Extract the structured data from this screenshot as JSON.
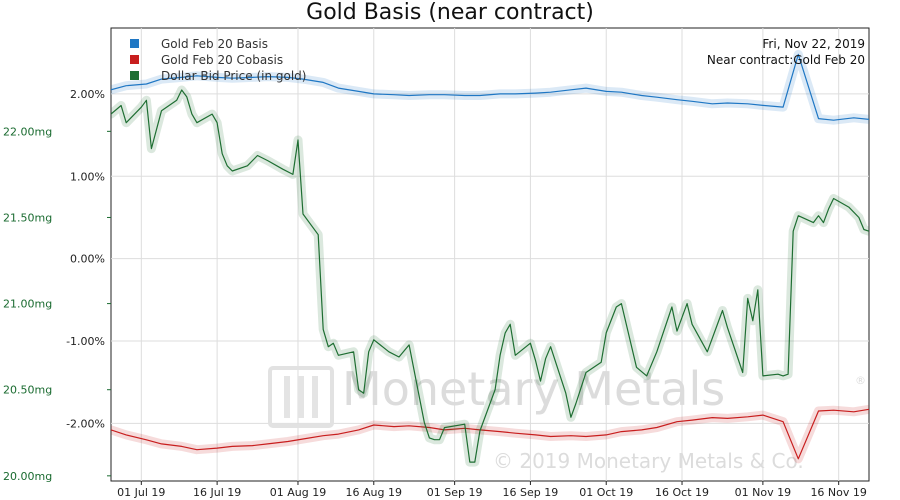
{
  "chart_data": {
    "type": "line",
    "title": "Gold Basis (near contract)",
    "info": [
      "Fri, Nov 22, 2019",
      "Near contract:Gold Feb 20"
    ],
    "watermark": {
      "brand": "Monetary Metals",
      "registered": "®",
      "copyright": "© 2019 Monetary Metals & Co."
    },
    "x_ticks": [
      "01 Jul 19",
      "16 Jul 19",
      "01 Aug 19",
      "16 Aug 19",
      "01 Sep 19",
      "16 Sep 19",
      "01 Oct 19",
      "16 Oct 19",
      "01 Nov 19",
      "16 Nov 19"
    ],
    "xlim": [
      "2019-06-25",
      "2019-11-22"
    ],
    "y_right": {
      "ticks": [
        "2.00%",
        "1.00%",
        "0.00%",
        "-1.00%",
        "-2.00%"
      ],
      "tick_values": [
        2,
        1,
        0,
        -1,
        -2
      ],
      "lim": [
        -2.7,
        2.8
      ]
    },
    "y_left": {
      "ticks": [
        "22.00mg",
        "21.50mg",
        "21.00mg",
        "20.50mg",
        "20.00mg"
      ],
      "tick_values": [
        22.0,
        21.5,
        21.0,
        20.5,
        20.0
      ],
      "lim": [
        19.97,
        22.6
      ]
    },
    "grid": true,
    "legend_position": "top-left",
    "series": [
      {
        "name": "Gold Feb 20 Basis",
        "axis": "right",
        "color": "#1f77c4",
        "x": [
          "2019-06-25",
          "2019-06-28",
          "2019-07-02",
          "2019-07-05",
          "2019-07-09",
          "2019-07-12",
          "2019-07-16",
          "2019-07-19",
          "2019-07-23",
          "2019-07-26",
          "2019-07-30",
          "2019-08-02",
          "2019-08-06",
          "2019-08-09",
          "2019-08-13",
          "2019-08-16",
          "2019-08-20",
          "2019-08-23",
          "2019-08-27",
          "2019-08-30",
          "2019-09-03",
          "2019-09-06",
          "2019-09-10",
          "2019-09-13",
          "2019-09-17",
          "2019-09-20",
          "2019-09-24",
          "2019-09-27",
          "2019-10-01",
          "2019-10-04",
          "2019-10-08",
          "2019-10-11",
          "2019-10-15",
          "2019-10-18",
          "2019-10-22",
          "2019-10-25",
          "2019-10-29",
          "2019-11-01",
          "2019-11-05",
          "2019-11-08",
          "2019-11-12",
          "2019-11-15",
          "2019-11-19",
          "2019-11-22"
        ],
        "values": [
          2.05,
          2.1,
          2.12,
          2.18,
          2.2,
          2.22,
          2.2,
          2.19,
          2.2,
          2.21,
          2.2,
          2.18,
          2.14,
          2.07,
          2.03,
          2.0,
          1.99,
          1.98,
          1.99,
          1.99,
          1.98,
          1.98,
          2.0,
          2.0,
          2.01,
          2.02,
          2.05,
          2.07,
          2.03,
          2.02,
          1.98,
          1.96,
          1.93,
          1.91,
          1.88,
          1.89,
          1.88,
          1.86,
          1.84,
          2.48,
          1.7,
          1.68,
          1.71,
          1.69
        ]
      },
      {
        "name": "Gold Feb 20 Cobasis",
        "axis": "right",
        "color": "#c81e1e",
        "x": [
          "2019-06-25",
          "2019-06-28",
          "2019-07-02",
          "2019-07-05",
          "2019-07-09",
          "2019-07-12",
          "2019-07-16",
          "2019-07-19",
          "2019-07-23",
          "2019-07-26",
          "2019-07-30",
          "2019-08-02",
          "2019-08-06",
          "2019-08-09",
          "2019-08-13",
          "2019-08-16",
          "2019-08-20",
          "2019-08-23",
          "2019-08-27",
          "2019-08-30",
          "2019-09-03",
          "2019-09-06",
          "2019-09-10",
          "2019-09-13",
          "2019-09-17",
          "2019-09-20",
          "2019-09-24",
          "2019-09-27",
          "2019-10-01",
          "2019-10-04",
          "2019-10-08",
          "2019-10-11",
          "2019-10-15",
          "2019-10-18",
          "2019-10-22",
          "2019-10-25",
          "2019-10-29",
          "2019-11-01",
          "2019-11-05",
          "2019-11-08",
          "2019-11-12",
          "2019-11-15",
          "2019-11-19",
          "2019-11-22"
        ],
        "values": [
          -2.08,
          -2.14,
          -2.2,
          -2.25,
          -2.28,
          -2.32,
          -2.3,
          -2.28,
          -2.27,
          -2.25,
          -2.22,
          -2.19,
          -2.15,
          -2.13,
          -2.08,
          -2.02,
          -2.04,
          -2.03,
          -2.05,
          -2.08,
          -2.06,
          -2.08,
          -2.1,
          -2.12,
          -2.14,
          -2.16,
          -2.15,
          -2.16,
          -2.14,
          -2.1,
          -2.08,
          -2.05,
          -1.98,
          -1.96,
          -1.93,
          -1.94,
          -1.92,
          -1.9,
          -1.98,
          -2.43,
          -1.85,
          -1.84,
          -1.86,
          -1.83
        ]
      },
      {
        "name": "Dollar Bid Price (in gold)",
        "axis": "left",
        "color": "#1e6e32",
        "x": [
          "2019-06-25",
          "2019-06-27",
          "2019-06-28",
          "2019-07-01",
          "2019-07-02",
          "2019-07-03",
          "2019-07-05",
          "2019-07-08",
          "2019-07-09",
          "2019-07-10",
          "2019-07-11",
          "2019-07-12",
          "2019-07-15",
          "2019-07-16",
          "2019-07-17",
          "2019-07-18",
          "2019-07-19",
          "2019-07-22",
          "2019-07-24",
          "2019-07-26",
          "2019-07-29",
          "2019-07-31",
          "2019-08-01",
          "2019-08-02",
          "2019-08-05",
          "2019-08-06",
          "2019-08-07",
          "2019-08-08",
          "2019-08-09",
          "2019-08-12",
          "2019-08-13",
          "2019-08-14",
          "2019-08-15",
          "2019-08-16",
          "2019-08-19",
          "2019-08-21",
          "2019-08-23",
          "2019-08-26",
          "2019-08-27",
          "2019-08-28",
          "2019-08-29",
          "2019-08-30",
          "2019-09-03",
          "2019-09-04",
          "2019-09-05",
          "2019-09-06",
          "2019-09-09",
          "2019-09-10",
          "2019-09-11",
          "2019-09-12",
          "2019-09-13",
          "2019-09-16",
          "2019-09-17",
          "2019-09-18",
          "2019-09-19",
          "2019-09-20",
          "2019-09-23",
          "2019-09-24",
          "2019-09-25",
          "2019-09-27",
          "2019-09-30",
          "2019-10-01",
          "2019-10-03",
          "2019-10-04",
          "2019-10-07",
          "2019-10-09",
          "2019-10-11",
          "2019-10-14",
          "2019-10-15",
          "2019-10-17",
          "2019-10-18",
          "2019-10-21",
          "2019-10-24",
          "2019-10-25",
          "2019-10-28",
          "2019-10-29",
          "2019-10-30",
          "2019-10-31",
          "2019-11-01",
          "2019-11-04",
          "2019-11-05",
          "2019-11-06",
          "2019-11-07",
          "2019-11-08",
          "2019-11-11",
          "2019-11-12",
          "2019-11-13",
          "2019-11-14",
          "2019-11-15",
          "2019-11-18",
          "2019-11-20",
          "2019-11-21",
          "2019-11-22"
        ],
        "values": [
          22.1,
          22.15,
          22.05,
          22.14,
          22.18,
          21.9,
          22.12,
          22.18,
          22.24,
          22.2,
          22.1,
          22.05,
          22.1,
          22.05,
          21.87,
          21.8,
          21.77,
          21.8,
          21.86,
          21.83,
          21.78,
          21.75,
          21.95,
          21.52,
          21.4,
          20.85,
          20.75,
          20.77,
          20.7,
          20.72,
          20.5,
          20.48,
          20.72,
          20.79,
          20.72,
          20.69,
          20.76,
          20.31,
          20.22,
          20.21,
          20.21,
          20.28,
          20.3,
          20.08,
          20.08,
          20.26,
          20.5,
          20.7,
          20.83,
          20.88,
          20.7,
          20.77,
          20.67,
          20.55,
          20.68,
          20.75,
          20.48,
          20.34,
          20.42,
          20.6,
          20.66,
          20.83,
          20.98,
          21.0,
          20.63,
          20.58,
          20.72,
          20.98,
          20.84,
          21.0,
          20.88,
          20.72,
          20.96,
          20.86,
          20.6,
          21.03,
          20.9,
          21.08,
          20.58,
          20.59,
          20.58,
          20.59,
          21.42,
          21.51,
          21.47,
          21.51,
          21.47,
          21.55,
          21.61,
          21.56,
          21.5,
          21.43,
          21.42
        ]
      }
    ]
  }
}
